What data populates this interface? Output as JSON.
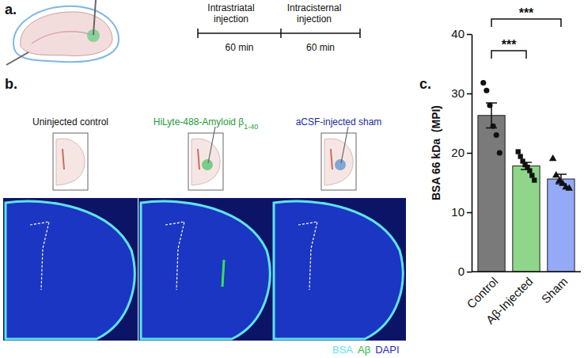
{
  "panels": {
    "a": {
      "label": "a.",
      "timeline": {
        "events": [
          "Intrastriatal injection",
          "Intracisternal injection"
        ],
        "intervals": [
          "60 min",
          "60 min"
        ]
      }
    },
    "b": {
      "label": "b.",
      "columns": [
        {
          "title": "Uninjected control",
          "color": "#111111"
        },
        {
          "title": "HiLyte-488-Amyloid β",
          "subscript": "1-40",
          "color": "#1f9a3c"
        },
        {
          "title": "aCSF-injected sham",
          "color": "#1c2a9c"
        }
      ],
      "stain_legend": [
        {
          "text": "BSA",
          "color": "#5ee3f0"
        },
        {
          "text": "Aβ",
          "color": "#2db84a"
        },
        {
          "text": "DAPI",
          "color": "#2a2ac0"
        }
      ]
    },
    "c": {
      "label": "c."
    }
  },
  "chart_data": {
    "type": "bar",
    "y_label": "BSA 66 kDa  (MPI)",
    "categories": [
      "Control",
      "Aβ-Injected",
      "Sham"
    ],
    "values": [
      26.3,
      17.8,
      15.6
    ],
    "errors": [
      2.1,
      0.6,
      0.8
    ],
    "points": [
      [
        31.8,
        30.5,
        28.0,
        24.5,
        23.0,
        20.0
      ],
      [
        20.2,
        19.4,
        18.6,
        18.0,
        17.6,
        17.0,
        16.2,
        15.4
      ],
      [
        19.0,
        16.2,
        15.3,
        14.8,
        14.2,
        14.0
      ]
    ],
    "colors": [
      "#7a7a7a",
      "#8fd68a",
      "#94aaf7"
    ],
    "ylim": [
      0,
      40
    ],
    "yticks": [
      0,
      10,
      20,
      30,
      40
    ],
    "annotations": [
      {
        "text": "***",
        "from": 0,
        "to": 1
      },
      {
        "text": "***",
        "from": 0,
        "to": 2
      }
    ]
  }
}
